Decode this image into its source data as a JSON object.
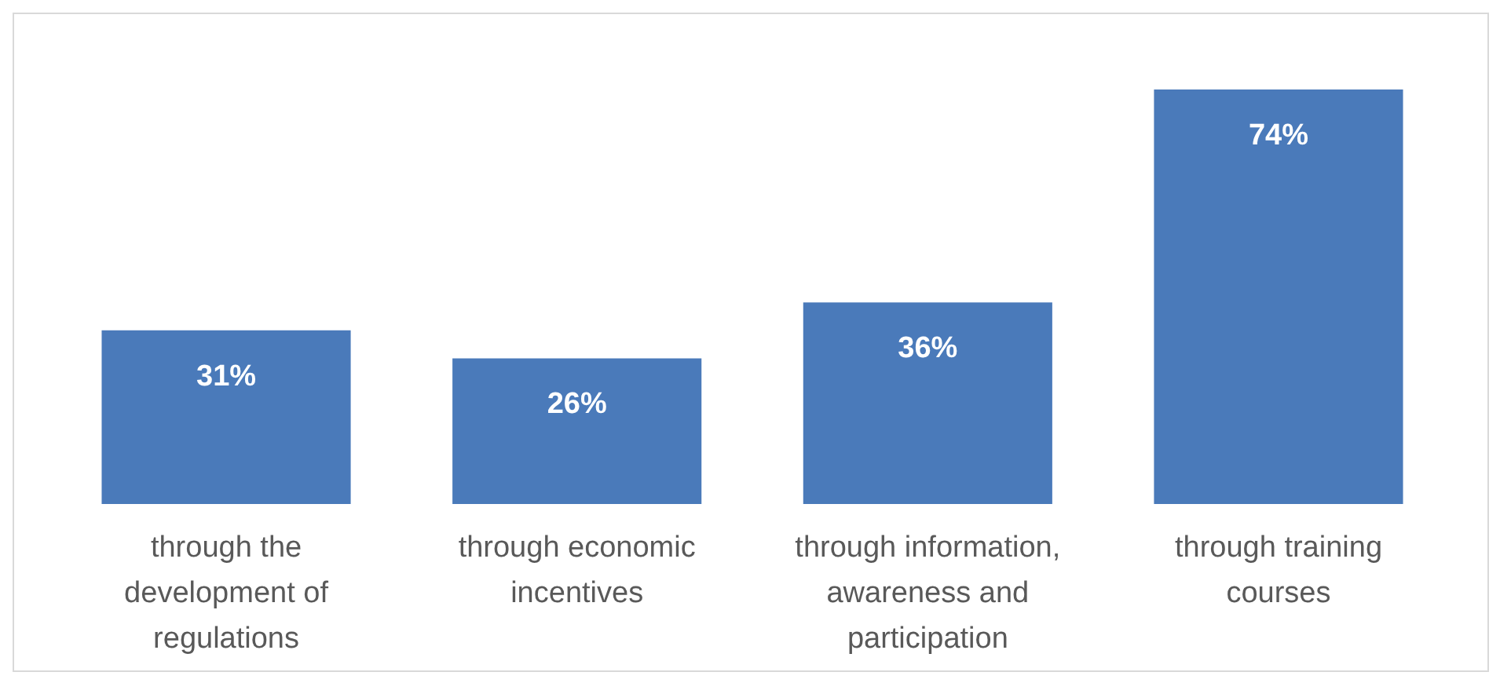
{
  "chart_data": {
    "type": "bar",
    "categories": [
      "through the development of regulations",
      "through economic incentives",
      "through information, awareness and participation",
      "through training courses"
    ],
    "values": [
      31,
      26,
      36,
      74
    ],
    "value_labels": [
      "31%",
      "26%",
      "36%",
      "74%"
    ],
    "color": "#4a7aba",
    "tick_labels": "x"
  }
}
